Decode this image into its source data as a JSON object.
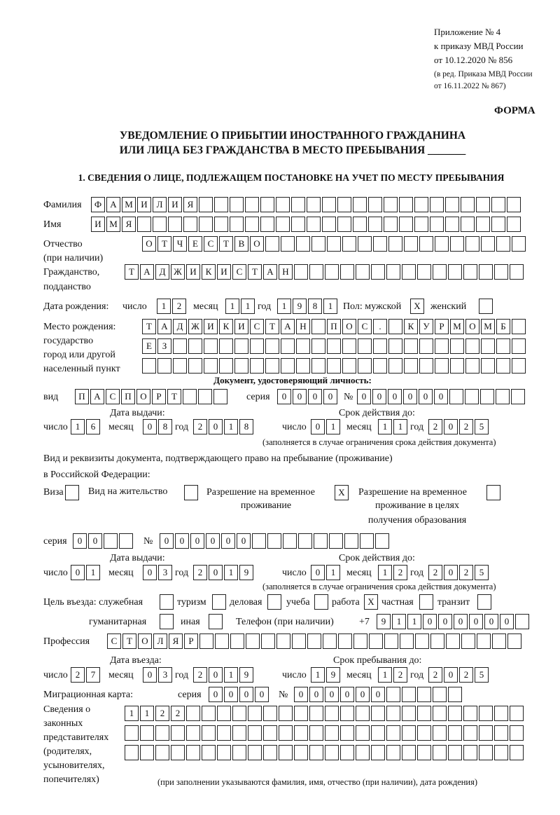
{
  "header": {
    "line1": "Приложение № 4",
    "line2": "к приказу МВД России",
    "line3": "от 10.12.2020 № 856",
    "line4": "(в ред. Приказа МВД России",
    "line5": "от 16.11.2022 № 867)",
    "forma": "ФОРМА"
  },
  "title": {
    "line1": "УВЕДОМЛЕНИЕ О ПРИБЫТИИ ИНОСТРАННОГО ГРАЖДАНИНА",
    "line2": "ИЛИ ЛИЦА БЕЗ ГРАЖДАНСТВА В МЕСТО ПРЕБЫВАНИЯ _______"
  },
  "section1": "1. СВЕДЕНИЯ О ЛИЦЕ, ПОДЛЕЖАЩЕМ ПОСТАНОВКЕ НА УЧЕТ ПО МЕСТУ ПРЕБЫВАНИЯ",
  "labels": {
    "surname": "Фамилия",
    "name": "Имя",
    "patronymic": "Отчество",
    "patronymic_note": "(при наличии)",
    "citizenship": "Гражданство,",
    "citizenship2": "подданство",
    "dob": "Дата рождения:",
    "day": "число",
    "month": "месяц",
    "year": "год",
    "sex": "Пол: мужской",
    "female": "женский",
    "birthplace1": "Место рождения:",
    "birthplace2": "государство",
    "birthplace3": "город или другой",
    "birthplace4": "населенный пункт",
    "id_doc": "Документ, удостоверяющий личность:",
    "kind": "вид",
    "series": "серия",
    "number": "№",
    "issue_date": "Дата выдачи:",
    "valid_until": "Срок действия до:",
    "validity_note": "(заполняется в случае ограничения срока действия документа)",
    "stay_doc1": "Вид и реквизиты документа, подтверждающего право на пребывание (проживание)",
    "stay_doc2": "в Российской Федерации:",
    "visa": "Виза",
    "residence": "Вид на жительство",
    "temp_permit": "Разрешение на временное",
    "temp_permit2": "проживание",
    "edu_permit": "Разрешение на временное",
    "edu_permit2": "проживание в целях",
    "edu_permit3": "получения образования",
    "purpose": "Цель въезда: служебная",
    "tourism": "туризм",
    "business": "деловая",
    "study": "учеба",
    "work": "работа",
    "private": "частная",
    "transit": "транзит",
    "humanitarian": "гуманитарная",
    "other": "иная",
    "phone": "Телефон (при наличии)",
    "phone_prefix": "+7",
    "profession": "Профессия",
    "entry_date": "Дата въезда:",
    "stay_until": "Срок пребывания до:",
    "migration_card": "Миграционная карта:",
    "reps1": "Сведения о",
    "reps2": "законных",
    "reps3": "представителях",
    "reps4": "(родителях,",
    "reps5": "усыновителях,",
    "reps6": "попечителях)",
    "reps_note": "(при заполнении указываются фамилия, имя, отчество (при наличии), дата рождения)"
  },
  "fields": {
    "surname": "ФАМИЛИЯ",
    "name": "ИМЯ",
    "patronymic": "ОТЧЕСТВО",
    "citizenship": "ТАДЖИКИСТАН",
    "dob_day": "12",
    "dob_month": "11",
    "dob_year": "1981",
    "sex_male": "X",
    "sex_female": "",
    "birthplace1": "ТАДЖИКИСТАН ПОС. КУРМОМБ",
    "birthplace2": "ЕЗ",
    "birthplace3": "",
    "id_kind": "ПАСПОРТ",
    "id_series": "0000",
    "id_number": "000000",
    "id_issue_day": "16",
    "id_issue_month": "08",
    "id_issue_year": "2018",
    "id_valid_day": "01",
    "id_valid_month": "11",
    "id_valid_year": "2025",
    "visa": "",
    "residence": "",
    "temp_permit": "X",
    "edu_permit": "",
    "stay_series": "00",
    "stay_number": "000000",
    "stay_issue_day": "01",
    "stay_issue_month": "03",
    "stay_issue_year": "2019",
    "stay_valid_day": "01",
    "stay_valid_month": "12",
    "stay_valid_year": "2025",
    "purpose_official": "",
    "purpose_tourism": "",
    "purpose_business": "",
    "purpose_study": "",
    "purpose_work": "X",
    "purpose_private": "",
    "purpose_transit": "",
    "purpose_humanitarian": "",
    "purpose_other": "",
    "phone": "911000000",
    "profession": "СТОЛЯР",
    "entry_day": "27",
    "entry_month": "03",
    "entry_year": "2019",
    "stay_day": "19",
    "stay_month": "12",
    "stay_year": "2025",
    "mc_series": "0000",
    "mc_number": "000000",
    "reps1": "1122",
    "reps2": "",
    "reps3": ""
  }
}
